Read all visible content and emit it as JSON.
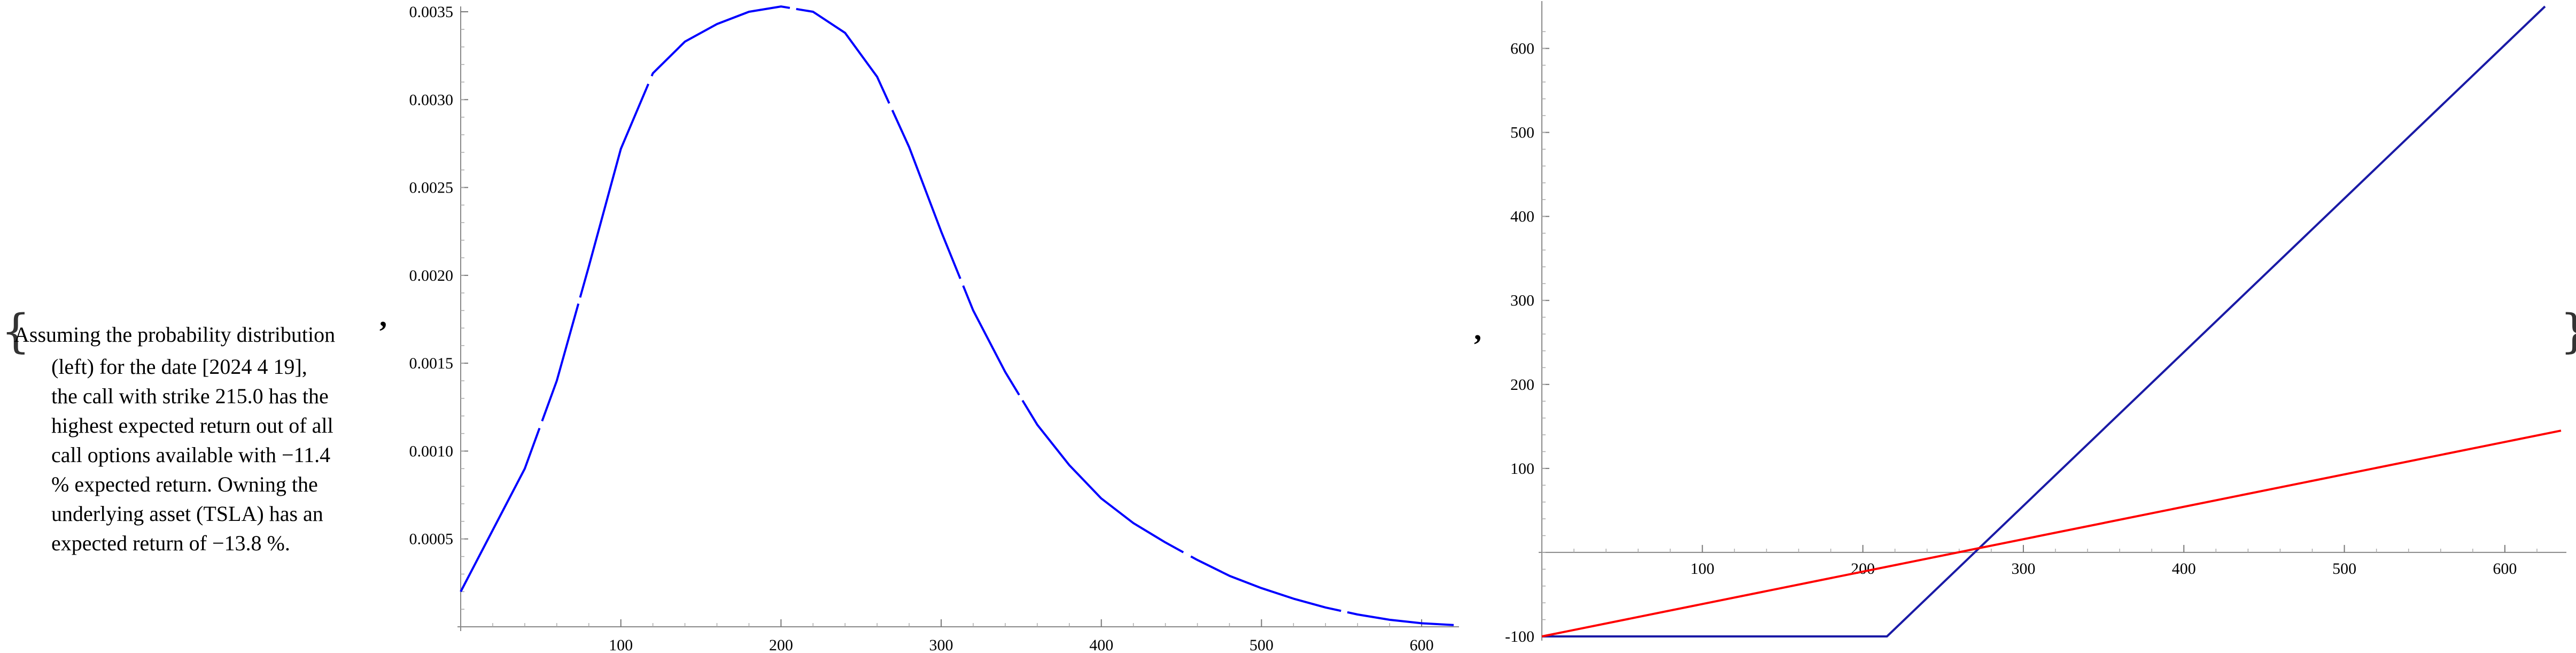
{
  "caption": {
    "open_brace": "{",
    "close_brace": "}",
    "lines": [
      "Assuming the probability distribution",
      "(left) for the date [2024 4 19],",
      "the call with strike 215.0 has the",
      "highest expected return out of all",
      "call options available with −11.4",
      "% expected return. Owning the",
      "underlying asset (TSLA) has an",
      "expected return of −13.8 %."
    ],
    "separator": ","
  },
  "chart_data": [
    {
      "type": "line",
      "xlim": [
        0,
        620
      ],
      "ylim": [
        0,
        0.0035
      ],
      "x_ticks": [
        100,
        200,
        300,
        400,
        500,
        600
      ],
      "y_ticks": [
        0.0005,
        0.001,
        0.0015,
        0.002,
        0.0025,
        0.003,
        0.0035
      ],
      "y_tick_labels": [
        "0.0005",
        "0.0010",
        "0.0015",
        "0.0020",
        "0.0025",
        "0.0030",
        "0.0035"
      ],
      "series": [
        {
          "color": "#0000ff",
          "dashed_gaps": true,
          "x": [
            0,
            20,
            40,
            60,
            80,
            100,
            120,
            140,
            160,
            180,
            200,
            220,
            240,
            260,
            280,
            300,
            320,
            340,
            360,
            380,
            400,
            420,
            440,
            460,
            480,
            500,
            520,
            540,
            560,
            580,
            600,
            620
          ],
          "y": [
            0.0002,
            0.00055,
            0.0009,
            0.0014,
            0.00205,
            0.00272,
            0.00315,
            0.00333,
            0.00343,
            0.0035,
            0.00353,
            0.0035,
            0.00338,
            0.00313,
            0.00273,
            0.00225,
            0.0018,
            0.00145,
            0.00115,
            0.00092,
            0.00073,
            0.00059,
            0.00048,
            0.00038,
            0.00029,
            0.00022,
            0.00016,
            0.00011,
            7e-05,
            4e-05,
            2e-05,
            1e-05
          ]
        }
      ]
    },
    {
      "type": "line",
      "xlim": [
        0,
        635
      ],
      "ylim": [
        -100,
        650
      ],
      "x_ticks": [
        100,
        200,
        300,
        400,
        500,
        600
      ],
      "y_ticks": [
        -100,
        100,
        200,
        300,
        400,
        500,
        600
      ],
      "y_tick_labels": [
        "-100",
        "100",
        "200",
        "300",
        "400",
        "500",
        "600"
      ],
      "series": [
        {
          "color": "#1a1aa6",
          "x": [
            0,
            215,
            625
          ],
          "y": [
            -100,
            -100,
            650
          ]
        },
        {
          "color": "#ff0000",
          "x": [
            0,
            635
          ],
          "y": [
            -100,
            145
          ]
        }
      ]
    }
  ]
}
